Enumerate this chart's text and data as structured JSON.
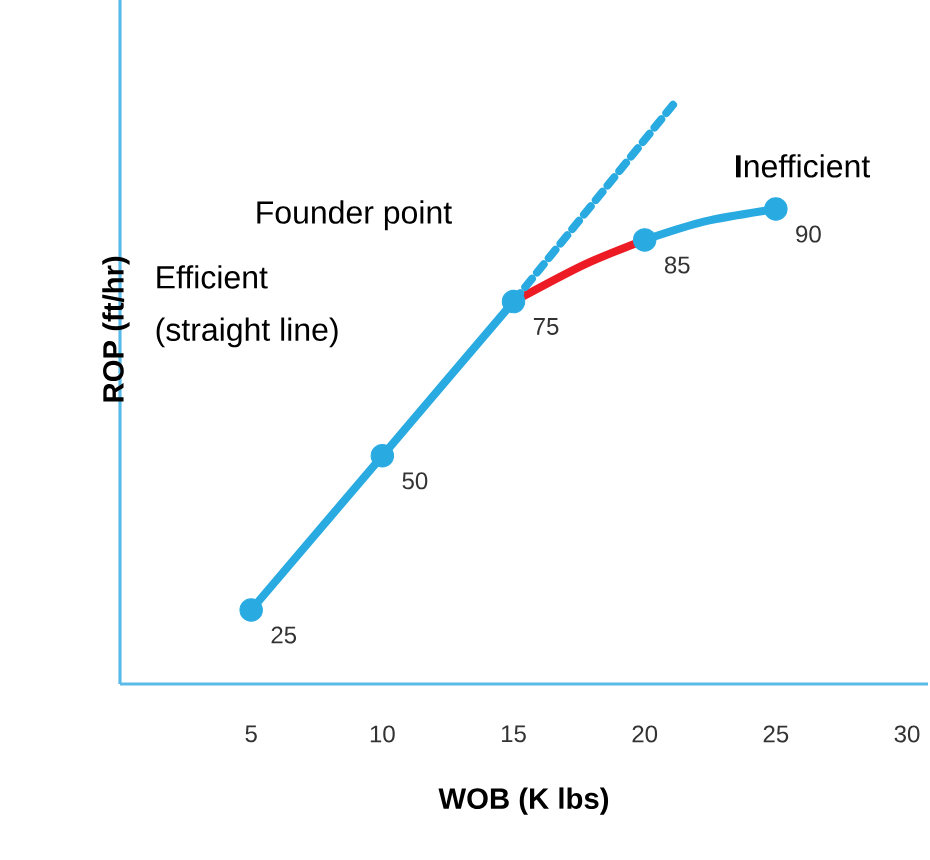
{
  "chart_data": {
    "type": "line",
    "xlabel": "WOB (K lbs)",
    "ylabel": "ROP (ft/hr)",
    "xlim": [
      0,
      30.8
    ],
    "xticks": [
      5,
      10,
      15,
      20,
      25,
      30
    ],
    "ylim": [
      13,
      128
    ],
    "tick_labels": "x",
    "series": [
      {
        "color": "#29abe2",
        "line_style": "solid",
        "x": [
          5,
          10,
          15
        ],
        "values": [
          25,
          50,
          75
        ]
      },
      {
        "color": "#ed1c24",
        "line_style": "solid",
        "x": [
          15,
          17.7,
          20
        ],
        "values": [
          75,
          81,
          85
        ]
      },
      {
        "color": "#29abe2",
        "line_style": "solid",
        "x": [
          20,
          22.3,
          25
        ],
        "values": [
          85,
          88,
          90
        ]
      },
      {
        "color": "#29abe2",
        "line_style": "dashed",
        "x": [
          15,
          21.1
        ],
        "values": [
          75,
          107
        ]
      },
      {
        "type": "scatter",
        "color": "#29abe2",
        "marker": "circle",
        "x": [
          5,
          10,
          15,
          20,
          25
        ],
        "values": [
          25,
          50,
          75,
          85,
          90
        ],
        "value_labels": [
          "25",
          "50",
          "75",
          "85",
          "90"
        ]
      }
    ],
    "annotations": [
      "Founder point",
      "Efficient",
      "(straight line)",
      "**I**nefficient"
    ]
  }
}
